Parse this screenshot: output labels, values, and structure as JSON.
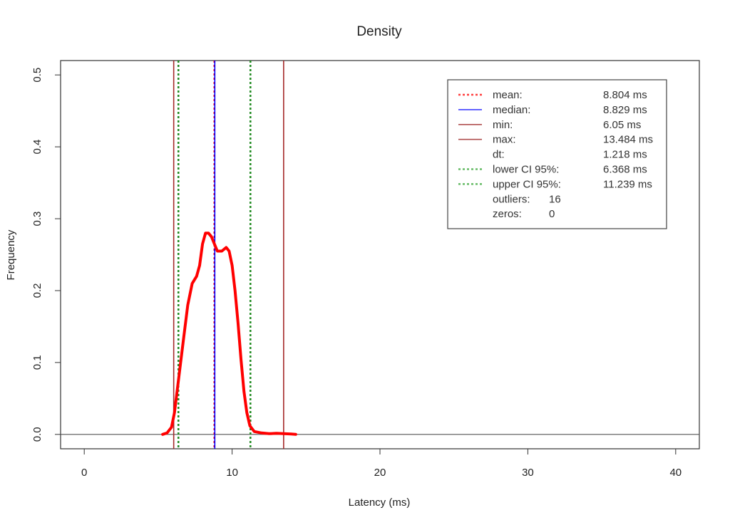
{
  "chart_data": {
    "type": "line",
    "title": "Density",
    "xlabel": "Latency (ms)",
    "ylabel": "Frequency",
    "xlim": [
      -1.6,
      41.6
    ],
    "ylim": [
      -0.02,
      0.52
    ],
    "xticks": [
      0,
      10,
      20,
      30,
      40
    ],
    "yticks": [
      0.0,
      0.1,
      0.2,
      0.3,
      0.4,
      0.5
    ],
    "xtick_labels": [
      "0",
      "10",
      "20",
      "30",
      "40"
    ],
    "ytick_labels": [
      "0.0",
      "0.1",
      "0.2",
      "0.3",
      "0.4",
      "0.5"
    ],
    "grid": false,
    "legend_position": "top-right",
    "density_curve": {
      "color": "#ff0000",
      "x": [
        5.3,
        5.6,
        5.9,
        6.1,
        6.4,
        6.7,
        7.0,
        7.3,
        7.6,
        7.8,
        8.0,
        8.2,
        8.4,
        8.6,
        8.8,
        9.0,
        9.3,
        9.6,
        9.8,
        10.0,
        10.2,
        10.4,
        10.6,
        10.8,
        11.0,
        11.2,
        11.5,
        12.0,
        12.5,
        13.0,
        13.5,
        14.0,
        14.3
      ],
      "y": [
        0.0,
        0.002,
        0.01,
        0.03,
        0.08,
        0.13,
        0.18,
        0.21,
        0.22,
        0.235,
        0.265,
        0.28,
        0.28,
        0.275,
        0.265,
        0.255,
        0.255,
        0.26,
        0.255,
        0.235,
        0.2,
        0.155,
        0.105,
        0.06,
        0.03,
        0.012,
        0.004,
        0.002,
        0.001,
        0.0015,
        0.001,
        0.0005,
        0.0
      ]
    },
    "vertical_lines": [
      {
        "name": "min",
        "x": 6.05,
        "color": "#a52a2a",
        "style": "solid"
      },
      {
        "name": "lower CI 95%",
        "x": 6.368,
        "color": "#228b22",
        "style": "dotted"
      },
      {
        "name": "mean",
        "x": 8.804,
        "color": "#ff0000",
        "style": "dotted"
      },
      {
        "name": "median",
        "x": 8.829,
        "color": "#0000ff",
        "style": "solid"
      },
      {
        "name": "upper CI 95%",
        "x": 11.239,
        "color": "#228b22",
        "style": "dotted"
      },
      {
        "name": "max",
        "x": 13.484,
        "color": "#a52a2a",
        "style": "solid"
      }
    ],
    "legend": [
      {
        "label": "mean:",
        "value": "8.804 ms",
        "color": "#ff4040",
        "style": "dotted"
      },
      {
        "label": "median:",
        "value": "8.829 ms",
        "color": "#4040ff",
        "style": "solid"
      },
      {
        "label": "min:",
        "value": "6.05 ms",
        "color": "#b05050",
        "style": "solid"
      },
      {
        "label": "max:",
        "value": "13.484 ms",
        "color": "#b05050",
        "style": "solid"
      },
      {
        "label": "dt:",
        "value": "1.218 ms",
        "color": "",
        "style": "none"
      },
      {
        "label": "lower CI 95%:",
        "value": "6.368 ms",
        "color": "#66bb66",
        "style": "dotted"
      },
      {
        "label": "upper CI 95%:",
        "value": "11.239 ms",
        "color": "#66bb66",
        "style": "dotted"
      },
      {
        "label": "outliers:",
        "value": "16",
        "color": "",
        "style": "none"
      },
      {
        "label": "zeros:",
        "value": "0",
        "color": "",
        "style": "none"
      }
    ]
  }
}
